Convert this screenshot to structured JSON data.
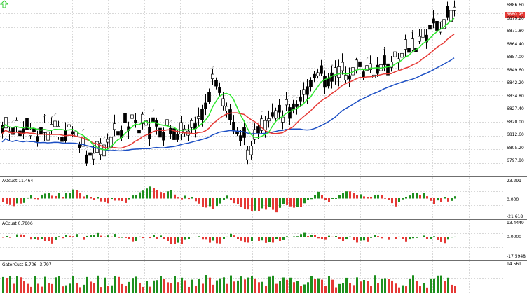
{
  "main": {
    "price_ticks": [
      "6886.60",
      "6879.20",
      "6871.80",
      "6864.40",
      "6857.00",
      "6849.60",
      "6842.20",
      "6834.80",
      "6827.40",
      "6820.00",
      "6812.60",
      "6805.20",
      "6797.80"
    ],
    "current_price": "6880.95"
  },
  "panes": {
    "ac": {
      "label": "AOcust 11.464",
      "ticks": [
        "23.291",
        "0.000",
        "-21.618"
      ]
    },
    "ac2": {
      "label": "ACcust 0.7806",
      "ticks": [
        "13.4449",
        "0.0000",
        "-17.5948"
      ]
    },
    "gator": {
      "label": "GatorCust 5.706 -3.797",
      "ticks": [
        "14.561"
      ]
    }
  },
  "colors": {
    "up_bar": "#1e8f1e",
    "down_bar": "#e53935",
    "jaw": "#1c4fc4",
    "teeth": "#e53935",
    "lips": "#2ee82e",
    "price_line": "#c62828",
    "up_arrow": "#33cc33",
    "grid": "#d8d8d8"
  }
}
